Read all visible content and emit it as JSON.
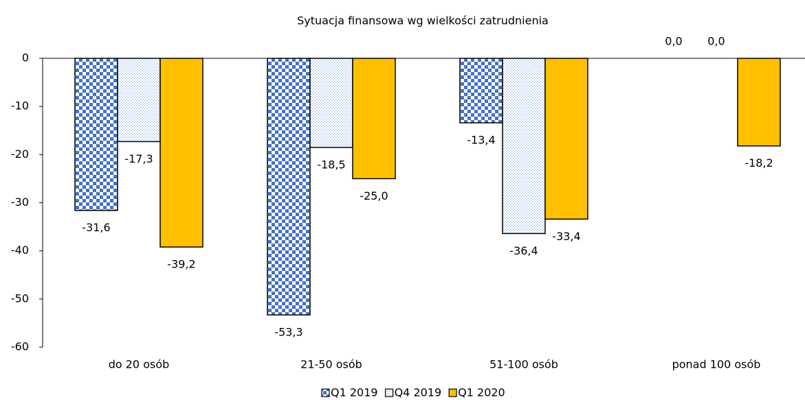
{
  "chart_data": {
    "type": "bar",
    "title": "Sytuacja finansowa wg wielkości zatrudnienia",
    "categories": [
      "do 20 osób",
      "21-50 osób",
      "51-100 osób",
      "ponad 100 osób"
    ],
    "series": [
      {
        "name": "Q1 2019",
        "color": "#4472c4",
        "pattern": "checker",
        "values": [
          -31.6,
          -53.3,
          -13.4,
          0.0
        ],
        "value_labels": [
          "-31,6",
          "-53,3",
          "-13,4",
          "0,0"
        ]
      },
      {
        "name": "Q4 2019",
        "color": "#8fb4e3",
        "pattern": "dots",
        "values": [
          -17.3,
          -18.5,
          -36.4,
          0.0
        ],
        "value_labels": [
          "-17,3",
          "-18,5",
          "-36,4",
          "0,0"
        ]
      },
      {
        "name": "Q1 2020",
        "color": "#ffc000",
        "pattern": "solid",
        "values": [
          -39.2,
          -25.0,
          -33.4,
          -18.2
        ],
        "value_labels": [
          "-39,2",
          "-25,0",
          "-33,4",
          "-18,2"
        ]
      }
    ],
    "ylim": [
      -60,
      0
    ],
    "yticks": [
      0,
      -10,
      -20,
      -30,
      -40,
      -50,
      -60
    ],
    "legend": "bottom"
  }
}
